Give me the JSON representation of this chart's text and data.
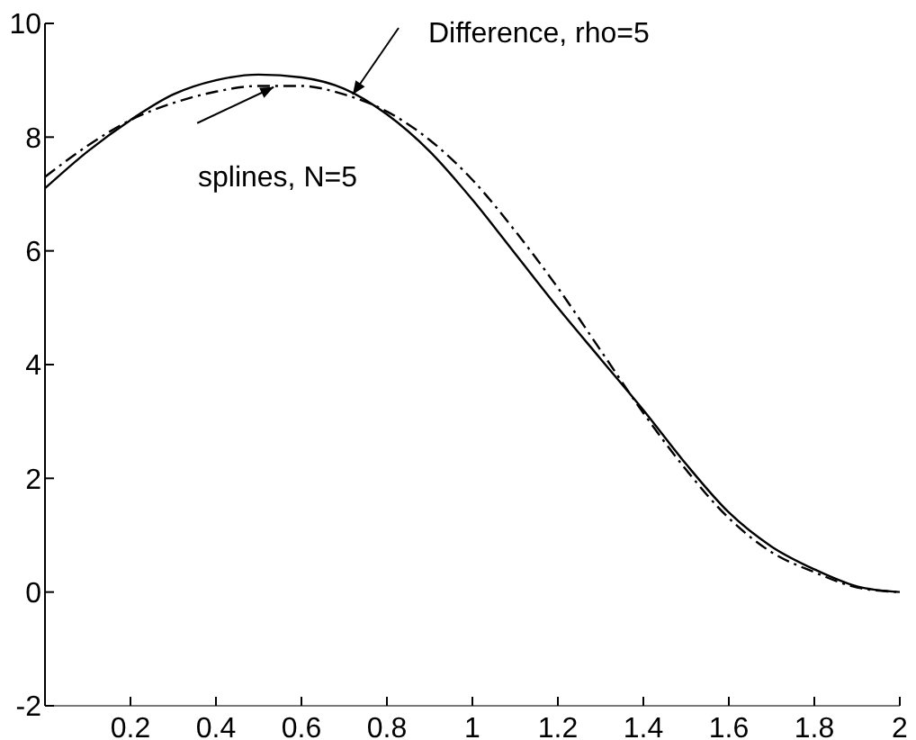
{
  "chart_data": {
    "type": "line",
    "xlim": [
      0,
      2
    ],
    "ylim": [
      -2,
      10
    ],
    "xticks": [
      0.2,
      0.4,
      0.6,
      0.8,
      1,
      1.2,
      1.4,
      1.6,
      1.8,
      2
    ],
    "yticks": [
      -2,
      0,
      2,
      4,
      6,
      8,
      10
    ],
    "grid": false,
    "x": [
      0,
      0.1,
      0.2,
      0.3,
      0.4,
      0.5,
      0.6,
      0.7,
      0.8,
      0.9,
      1,
      1.1,
      1.2,
      1.3,
      1.4,
      1.5,
      1.6,
      1.7,
      1.8,
      1.9,
      2
    ],
    "series": [
      {
        "color": "#000000",
        "line_style": "solid",
        "values": [
          7.1,
          7.75,
          8.3,
          8.75,
          9.0,
          9.1,
          9.05,
          8.85,
          8.4,
          7.75,
          6.9,
          5.95,
          5.0,
          4.1,
          3.2,
          2.25,
          1.4,
          0.8,
          0.4,
          0.1,
          0
        ]
      },
      {
        "color": "#000000",
        "line_style": "dashed",
        "values": [
          7.3,
          7.85,
          8.3,
          8.6,
          8.8,
          8.9,
          8.9,
          8.75,
          8.45,
          7.95,
          7.25,
          6.35,
          5.35,
          4.25,
          3.15,
          2.15,
          1.3,
          0.7,
          0.35,
          0.08,
          0
        ]
      }
    ],
    "annotations": [
      {
        "text": "Difference, rho=5",
        "x": 0.72,
        "y": 8.75
      },
      {
        "text": "splines, N=5",
        "x": 0.535,
        "y": 8.88
      }
    ]
  }
}
